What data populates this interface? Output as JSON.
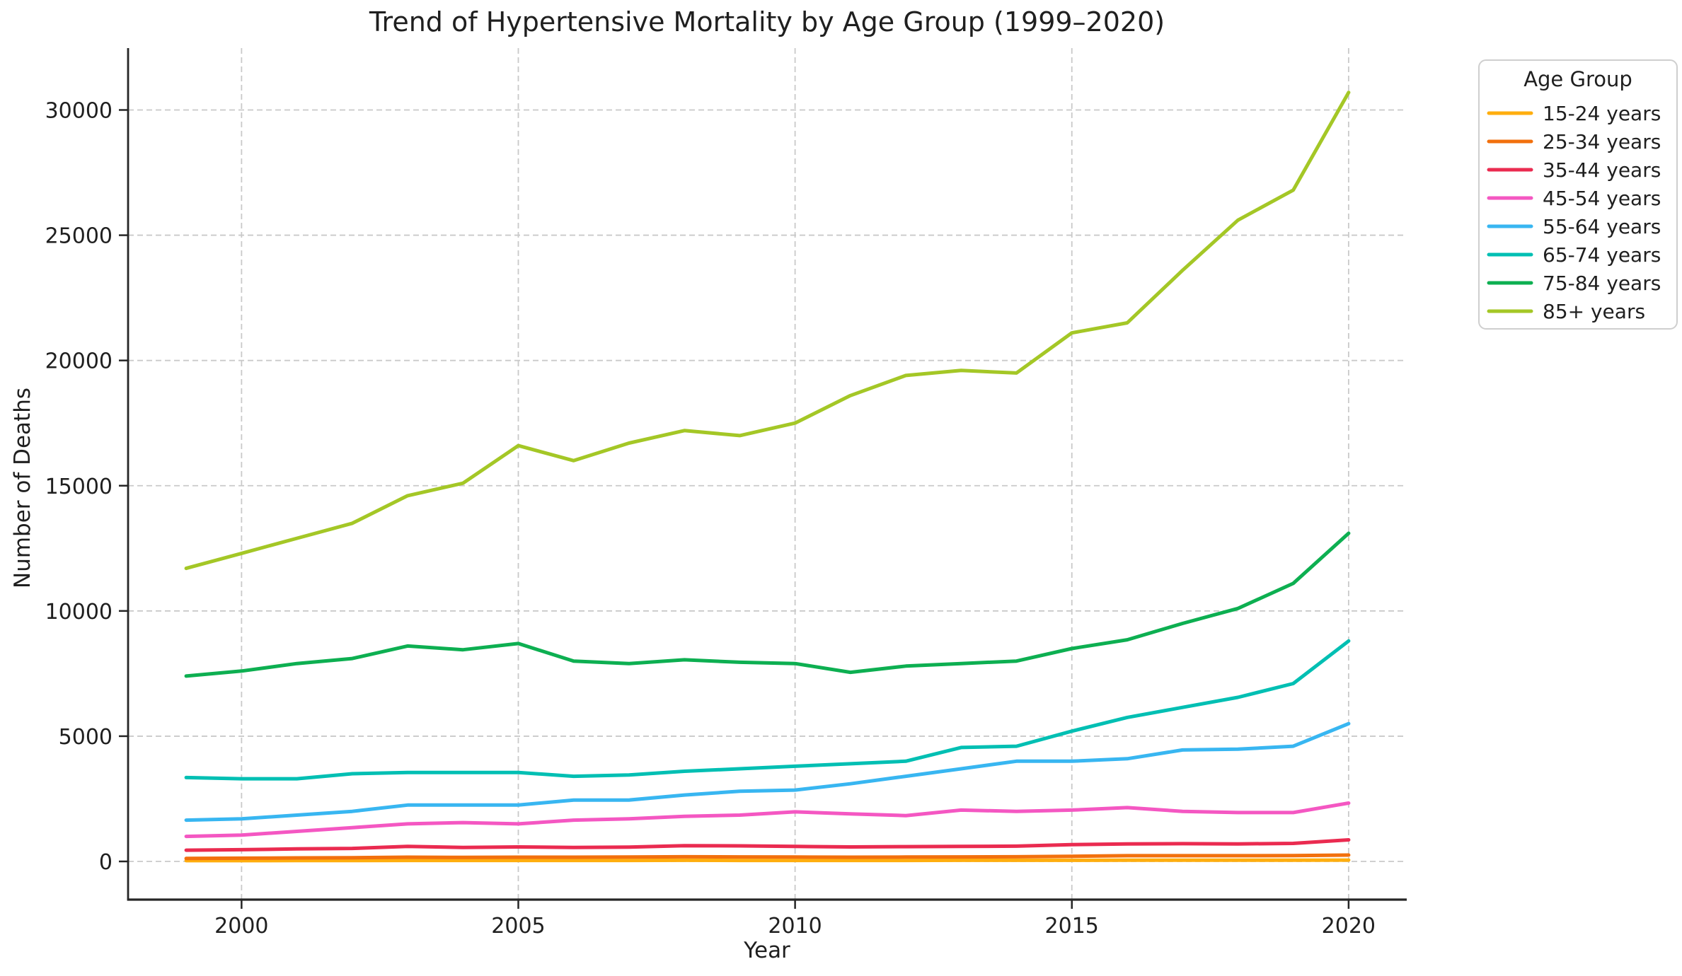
{
  "title": "Trend of Hypertensive Mortality by Age Group (1999–2020)",
  "chart_data": {
    "type": "line",
    "title": "Trend of Hypertensive Mortality by Age Group (1999–2020)",
    "xlabel": "Year",
    "ylabel": "Number of Deaths",
    "legend_title": "Age Group",
    "legend_position": "outside upper right",
    "grid": true,
    "x": [
      1999,
      2000,
      2001,
      2002,
      2003,
      2004,
      2005,
      2006,
      2007,
      2008,
      2009,
      2010,
      2011,
      2012,
      2013,
      2014,
      2015,
      2016,
      2017,
      2018,
      2019,
      2020
    ],
    "xticks": [
      2000,
      2005,
      2010,
      2015,
      2020
    ],
    "yticks": [
      0,
      5000,
      10000,
      15000,
      20000,
      25000,
      30000
    ],
    "xlim": [
      1997.95,
      2021.05
    ],
    "ylim": [
      -1524,
      32455
    ],
    "series": [
      {
        "name": "15-24 years",
        "color": "#FFAE0E",
        "values": [
          30,
          30,
          35,
          35,
          40,
          40,
          40,
          40,
          40,
          45,
          40,
          40,
          40,
          40,
          45,
          45,
          45,
          50,
          50,
          50,
          50,
          55
        ]
      },
      {
        "name": "25-34 years",
        "color": "#F2700D",
        "values": [
          120,
          130,
          140,
          150,
          170,
          160,
          170,
          170,
          175,
          185,
          180,
          175,
          170,
          175,
          180,
          185,
          205,
          230,
          230,
          230,
          235,
          255
        ]
      },
      {
        "name": "35-44 years",
        "color": "#EA2B50",
        "values": [
          450,
          470,
          500,
          520,
          600,
          560,
          580,
          560,
          570,
          630,
          620,
          600,
          580,
          590,
          600,
          610,
          670,
          700,
          710,
          700,
          720,
          860
        ]
      },
      {
        "name": "45-54 years",
        "color": "#F457C2",
        "values": [
          1000,
          1050,
          1200,
          1350,
          1500,
          1550,
          1500,
          1650,
          1700,
          1800,
          1850,
          1980,
          1900,
          1830,
          2050,
          2000,
          2050,
          2150,
          2000,
          1950,
          1950,
          2330
        ]
      },
      {
        "name": "55-64 years",
        "color": "#38B6F1",
        "values": [
          1650,
          1700,
          1850,
          2000,
          2250,
          2250,
          2250,
          2450,
          2450,
          2650,
          2800,
          2850,
          3100,
          3400,
          3700,
          4000,
          4000,
          4100,
          4450,
          4480,
          4600,
          5500
        ]
      },
      {
        "name": "65-74 years",
        "color": "#00BFB3",
        "values": [
          3350,
          3300,
          3300,
          3500,
          3550,
          3550,
          3550,
          3400,
          3450,
          3600,
          3700,
          3800,
          3900,
          4000,
          4550,
          4600,
          5200,
          5750,
          6150,
          6550,
          7100,
          8800
        ]
      },
      {
        "name": "75-84 years",
        "color": "#0DAF51",
        "values": [
          7400,
          7600,
          7900,
          8100,
          8600,
          8450,
          8700,
          8000,
          7900,
          8050,
          7950,
          7900,
          7550,
          7800,
          7900,
          8000,
          8500,
          8850,
          9500,
          10100,
          11100,
          13100
        ]
      },
      {
        "name": "85+ years",
        "color": "#A4C726",
        "values": [
          11700,
          12300,
          12900,
          13500,
          14600,
          15100,
          16600,
          16000,
          16700,
          17200,
          17000,
          17500,
          18600,
          19400,
          19600,
          19500,
          21100,
          21500,
          23600,
          25600,
          26800,
          30700
        ]
      }
    ],
    "colors": {
      "text": "#1f1f1f",
      "spine": "#262626",
      "grid": "#c9c9c9",
      "legend_border": "#cfcfcf",
      "background": "#ffffff"
    }
  }
}
